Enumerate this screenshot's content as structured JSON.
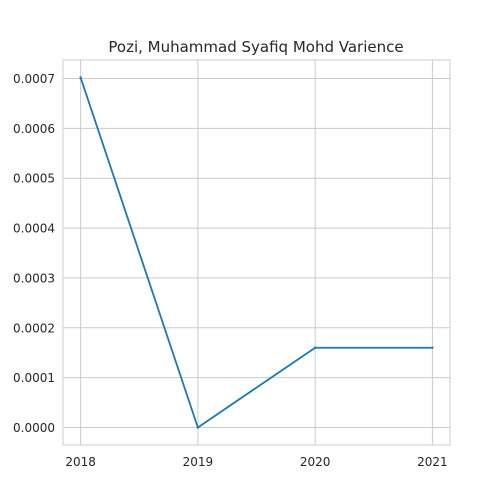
{
  "chart_data": {
    "type": "line",
    "title": "Pozi, Muhammad Syafiq Mohd Varience",
    "xlabel": "",
    "ylabel": "",
    "x": [
      "2018",
      "2019",
      "2020",
      "2021"
    ],
    "series": [
      {
        "values": [
          0.000702,
          0.0,
          0.00016,
          0.00016
        ],
        "color": "#1f77b4"
      }
    ],
    "xticks": [
      "2018",
      "2019",
      "2020",
      "2021"
    ],
    "yticks": [
      {
        "value": 0.0,
        "label": "0.0000"
      },
      {
        "value": 0.0001,
        "label": "0.0001"
      },
      {
        "value": 0.0002,
        "label": "0.0002"
      },
      {
        "value": 0.0003,
        "label": "0.0003"
      },
      {
        "value": 0.0004,
        "label": "0.0004"
      },
      {
        "value": 0.0005,
        "label": "0.0005"
      },
      {
        "value": 0.0006,
        "label": "0.0006"
      },
      {
        "value": 0.0007,
        "label": "0.0007"
      }
    ],
    "xlim": [
      2017.85,
      2021.15
    ],
    "ylim": [
      -3.51e-05,
      0.0007371
    ],
    "grid": true,
    "style": {
      "grid_color": "#cccccc",
      "spine_color": "#cccccc"
    }
  }
}
